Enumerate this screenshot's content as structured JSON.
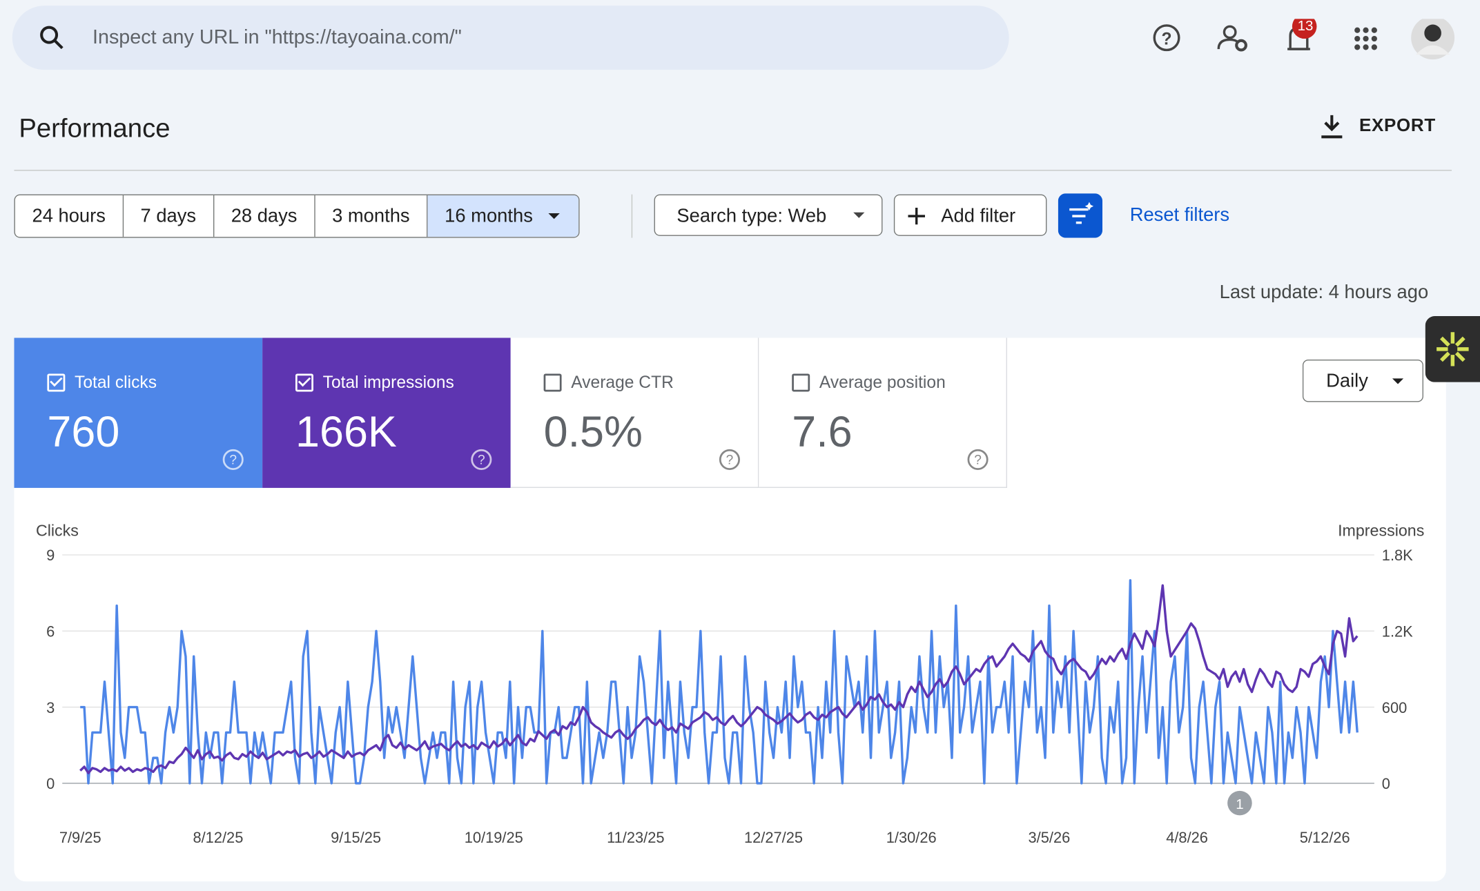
{
  "search": {
    "placeholder": "Inspect any URL in \"https://tayoaina.com/\""
  },
  "notifications": {
    "count": "13"
  },
  "header": {
    "title": "Performance",
    "export": "EXPORT"
  },
  "date_ranges": [
    "24 hours",
    "7 days",
    "28 days",
    "3 months",
    "16 months"
  ],
  "filters": {
    "search_type": "Search type: Web",
    "add_filter": "Add filter",
    "reset": "Reset filters"
  },
  "last_update": "Last update: 4 hours ago",
  "metrics": [
    {
      "label": "Total clicks",
      "value": "760"
    },
    {
      "label": "Total impressions",
      "value": "166K"
    },
    {
      "label": "Average CTR",
      "value": "0.5%"
    },
    {
      "label": "Average position",
      "value": "7.6"
    }
  ],
  "granularity": "Daily",
  "chart": {
    "type": "line",
    "y_label": "Clicks",
    "y2_label": "Impressions",
    "ylim": [
      0,
      9
    ],
    "yticks": [
      0,
      3,
      6,
      9
    ],
    "y2lim": [
      0,
      1800
    ],
    "y2ticks": [
      0,
      600,
      {
        "value": 1200,
        "label": "1.2K"
      },
      {
        "value": 1800,
        "label": "1.8K"
      }
    ],
    "xlim": [
      0,
      315
    ],
    "xticks": [
      {
        "value": 0,
        "label": "7/9/25"
      },
      {
        "value": 34,
        "label": "8/12/25"
      },
      {
        "value": 68,
        "label": "9/15/25"
      },
      {
        "value": 102,
        "label": "10/19/25"
      },
      {
        "value": 137,
        "label": "11/23/25"
      },
      {
        "value": 171,
        "label": "12/27/25"
      },
      {
        "value": 205,
        "label": "1/30/26"
      },
      {
        "value": 239,
        "label": "3/5/26"
      },
      {
        "value": 273,
        "label": "4/8/26"
      },
      {
        "value": 307,
        "label": "5/12/26"
      }
    ],
    "grid": true,
    "annotations": [
      {
        "x": 286,
        "label": "1"
      }
    ],
    "series": [
      {
        "color": "#4e86e8",
        "values": [
          3,
          3,
          0,
          2,
          2,
          2,
          4,
          2,
          0,
          7,
          2,
          1,
          3,
          3,
          3,
          2,
          2,
          0,
          1,
          1,
          0,
          2,
          3,
          2,
          3,
          6,
          5,
          0,
          5,
          2,
          0,
          2,
          1,
          2,
          2,
          0,
          2,
          2,
          4,
          2,
          2,
          2,
          0,
          2,
          1,
          2,
          1,
          0,
          2,
          2,
          2,
          3,
          4,
          1,
          0,
          5,
          6,
          2,
          0,
          3,
          2,
          1,
          0,
          2,
          3,
          1,
          4,
          2,
          0,
          0,
          1,
          3,
          4,
          6,
          4,
          1,
          3,
          2,
          3,
          2,
          1,
          3,
          5,
          3,
          1,
          0,
          1,
          2,
          1,
          2,
          2,
          0,
          4,
          1,
          0,
          3,
          4,
          0,
          3,
          4,
          2,
          1,
          0,
          2,
          2,
          1,
          4,
          0,
          3,
          1,
          3,
          3,
          2,
          2,
          6,
          0,
          2,
          2,
          3,
          1,
          1,
          2,
          3,
          3,
          0,
          4,
          0,
          1,
          2,
          1,
          2,
          4,
          4,
          2,
          0,
          3,
          1,
          2,
          5,
          4,
          2,
          0,
          3,
          6,
          1,
          4,
          2,
          0,
          4,
          2,
          1,
          3,
          3,
          6,
          2,
          0,
          2,
          2,
          5,
          1,
          0,
          2,
          2,
          0,
          5,
          3,
          2,
          0,
          0,
          4,
          2,
          1,
          3,
          2,
          4,
          1,
          5,
          3,
          4,
          2,
          2,
          0,
          3,
          1,
          4,
          2,
          6,
          2,
          0,
          5,
          4,
          3,
          4,
          2,
          5,
          1,
          6,
          2,
          3,
          4,
          1,
          2,
          4,
          0,
          1,
          3,
          2,
          5,
          3,
          2,
          6,
          2,
          5,
          3,
          4,
          1,
          7,
          2,
          3,
          5,
          2,
          3,
          4,
          0,
          5,
          2,
          3,
          3,
          4,
          2,
          5,
          0,
          2,
          4,
          3,
          6,
          2,
          3,
          1,
          7,
          2,
          4,
          3,
          5,
          2,
          6,
          3,
          0,
          4,
          2,
          3,
          5,
          1,
          0,
          3,
          2,
          4,
          0,
          1,
          8,
          0,
          3,
          5,
          2,
          4,
          6,
          1,
          3,
          0,
          4,
          5,
          2,
          3,
          6,
          1,
          0,
          3,
          4,
          2,
          0,
          3,
          4,
          0,
          2,
          1,
          0,
          3,
          2,
          1,
          0,
          2,
          1,
          0,
          3,
          2,
          0,
          4,
          0,
          2,
          1,
          3,
          2,
          0,
          3,
          2,
          1,
          4,
          5,
          3,
          6,
          4,
          2,
          4,
          2,
          4,
          2
        ]
      },
      {
        "color": "#5e35b1",
        "axis": "y2",
        "values": [
          100,
          130,
          80,
          120,
          110,
          90,
          120,
          100,
          110,
          95,
          130,
          100,
          120,
          90,
          110,
          100,
          120,
          110,
          90,
          130,
          140,
          120,
          170,
          160,
          200,
          230,
          280,
          240,
          200,
          260,
          190,
          230,
          250,
          200,
          210,
          180,
          220,
          240,
          200,
          190,
          230,
          210,
          250,
          220,
          200,
          240,
          190,
          210,
          230,
          250,
          220,
          250,
          240,
          260,
          210,
          230,
          240,
          200,
          220,
          250,
          210,
          230,
          260,
          240,
          220,
          200,
          250,
          210,
          230,
          240,
          220,
          260,
          280,
          300,
          260,
          350,
          380,
          300,
          280,
          320,
          270,
          300,
          280,
          260,
          290,
          330,
          270,
          290,
          300,
          310,
          280,
          260,
          300,
          330,
          290,
          310,
          280,
          300,
          270,
          320,
          300,
          280,
          330,
          290,
          310,
          350,
          300,
          340,
          380,
          320,
          300,
          350,
          330,
          410,
          380,
          350,
          400,
          420,
          380,
          450,
          430,
          480,
          460,
          520,
          600,
          560,
          480,
          450,
          430,
          400,
          380,
          360,
          400,
          420,
          380,
          350,
          380,
          430,
          460,
          500,
          520,
          480,
          460,
          500,
          450,
          420,
          440,
          400,
          470,
          450,
          430,
          480,
          500,
          520,
          560,
          540,
          500,
          520,
          480,
          460,
          500,
          530,
          480,
          450,
          480,
          520,
          560,
          600,
          580,
          540,
          520,
          500,
          470,
          490,
          520,
          550,
          510,
          480,
          500,
          540,
          560,
          520,
          500,
          540,
          520,
          560,
          580,
          600,
          550,
          520,
          560,
          600,
          640,
          580,
          620,
          680,
          660,
          700,
          640,
          600,
          620,
          580,
          640,
          600,
          700,
          760,
          720,
          800,
          740,
          680,
          720,
          780,
          820,
          760,
          800,
          880,
          920,
          860,
          780,
          820,
          860,
          900,
          880,
          940,
          980,
          1000,
          920,
          960,
          1000,
          1060,
          1100,
          1060,
          1020,
          1000,
          960,
          1040,
          1080,
          1120,
          1040,
          1000,
          980,
          900,
          860,
          920,
          960,
          980,
          940,
          900,
          880,
          820,
          860,
          920,
          980,
          940,
          1000,
          960,
          1020,
          1060,
          980,
          1100,
          1180,
          1120,
          1060,
          1200,
          1150,
          1080,
          1300,
          1560,
          1200,
          1000,
          1050,
          1100,
          1150,
          1200,
          1260,
          1220,
          1120,
          1000,
          900,
          880,
          860,
          820,
          900,
          760,
          840,
          880,
          800,
          900,
          780,
          720,
          820,
          900,
          860,
          800,
          760,
          880,
          860,
          780,
          740,
          720,
          760,
          900,
          880,
          840,
          940,
          960,
          1000,
          920,
          860,
          1100,
          1200,
          1180,
          1000,
          1300,
          1120,
          1160
        ]
      }
    ]
  }
}
